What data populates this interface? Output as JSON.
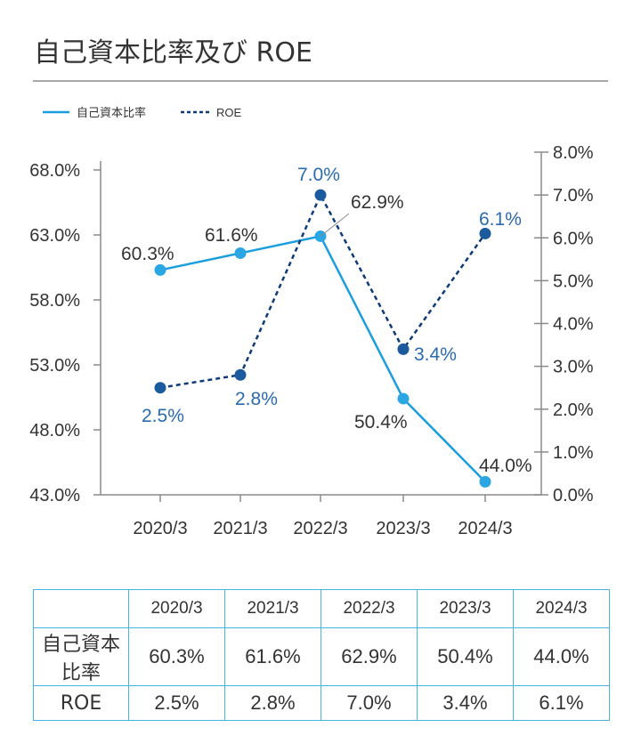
{
  "page": {
    "title": "自己資本比率及び ROE"
  },
  "chart_data": {
    "type": "line",
    "categories": [
      "2020/3",
      "2021/3",
      "2022/3",
      "2023/3",
      "2024/3"
    ],
    "series": [
      {
        "name": "自己資本比率",
        "axis": "left",
        "style": "solid",
        "values": [
          60.3,
          61.6,
          62.9,
          50.4,
          44.0
        ],
        "labels": [
          "60.3%",
          "61.6%",
          "62.9%",
          "50.4%",
          "44.0%"
        ],
        "color": "#1a9ede"
      },
      {
        "name": "ROE",
        "axis": "right",
        "style": "dashed",
        "values": [
          2.5,
          2.8,
          7.0,
          3.4,
          6.1
        ],
        "labels": [
          "2.5%",
          "2.8%",
          "7.0%",
          "3.4%",
          "6.1%"
        ],
        "color": "#0d3b7a",
        "marker_color": "#1b5a9c",
        "label_color": "#2a6aae"
      }
    ],
    "left_axis": {
      "ylim": [
        43.0,
        68.0
      ],
      "ticks": [
        "43.0%",
        "48.0%",
        "53.0%",
        "58.0%",
        "63.0%",
        "68.0%"
      ],
      "tick_values": [
        43.0,
        48.0,
        53.0,
        58.0,
        63.0,
        68.0
      ]
    },
    "right_axis": {
      "ylim": [
        0.0,
        8.0
      ],
      "ticks": [
        "0.0%",
        "1.0%",
        "2.0%",
        "3.0%",
        "4.0%",
        "5.0%",
        "6.0%",
        "7.0%",
        "8.0%"
      ],
      "tick_values": [
        0,
        1,
        2,
        3,
        4,
        5,
        6,
        7,
        8
      ]
    },
    "legend_position": "top-left",
    "grid": false
  },
  "table": {
    "headers": [
      "2020/3",
      "2021/3",
      "2022/3",
      "2023/3",
      "2024/3"
    ],
    "rows": [
      {
        "label": "自己資本比率",
        "cells": [
          "60.3%",
          "61.6%",
          "62.9%",
          "50.4%",
          "44.0%"
        ]
      },
      {
        "label": "ROE",
        "cells": [
          "2.5%",
          "2.8%",
          "7.0%",
          "3.4%",
          "6.1%"
        ]
      }
    ]
  }
}
